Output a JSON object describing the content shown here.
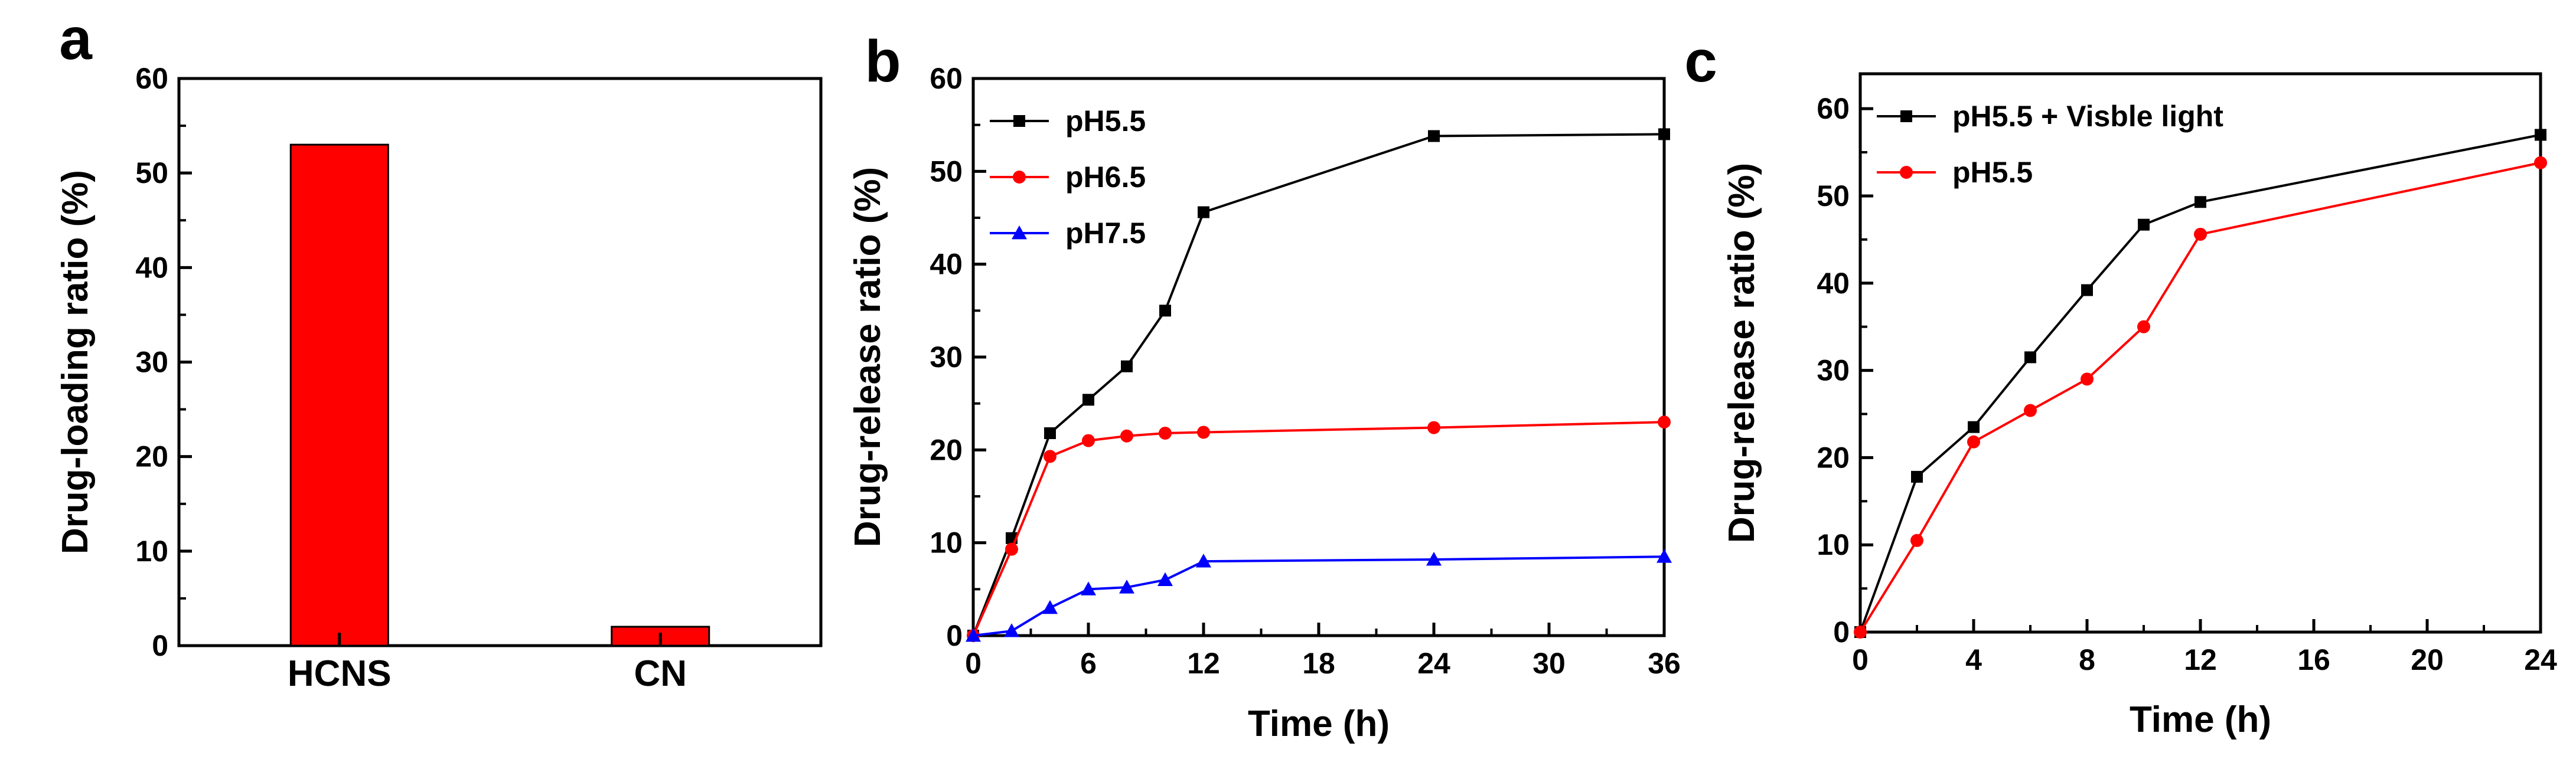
{
  "chart_data": [
    {
      "panel": "a",
      "type": "bar",
      "categories": [
        "HCNS",
        "CN"
      ],
      "values": [
        53,
        2
      ],
      "color": "#ff0000",
      "ylabel": "Drug-loading ratio (%)",
      "xlabel": "",
      "ylim": [
        0,
        60
      ],
      "yticks": [
        "0",
        "10",
        "20",
        "30",
        "40",
        "50",
        "60"
      ]
    },
    {
      "panel": "b",
      "type": "line",
      "xlabel": "Time (h)",
      "ylabel": "Drug-release ratio (%)",
      "xlim": [
        0,
        36
      ],
      "ylim": [
        0,
        60
      ],
      "xticks": [
        "0",
        "6",
        "12",
        "18",
        "24",
        "30",
        "36"
      ],
      "yticks": [
        "0",
        "10",
        "20",
        "30",
        "40",
        "50",
        "60"
      ],
      "legend_position": "top-left",
      "series": [
        {
          "name": "pH5.5",
          "color": "#000000",
          "marker": "square",
          "x": [
            0,
            2,
            4,
            6,
            8,
            10,
            12,
            24,
            36
          ],
          "y": [
            0,
            10.5,
            21.8,
            25.4,
            29,
            35,
            45.6,
            53.8,
            54
          ]
        },
        {
          "name": "pH6.5",
          "color": "#ff0000",
          "marker": "circle",
          "x": [
            0,
            2,
            4,
            6,
            8,
            10,
            12,
            24,
            36
          ],
          "y": [
            0,
            9.3,
            19.3,
            21,
            21.5,
            21.8,
            21.9,
            22.4,
            23
          ]
        },
        {
          "name": "pH7.5",
          "color": "#0000ff",
          "marker": "triangle",
          "x": [
            0,
            2,
            4,
            6,
            8,
            10,
            12,
            24,
            36
          ],
          "y": [
            0,
            0.5,
            3,
            5,
            5.2,
            6,
            8,
            8.2,
            8.5
          ]
        }
      ]
    },
    {
      "panel": "c",
      "type": "line",
      "xlabel": "Time (h)",
      "ylabel": "Drug-release ratio (%)",
      "xlim": [
        0,
        24
      ],
      "ylim": [
        0,
        64
      ],
      "xticks": [
        "0",
        "4",
        "8",
        "12",
        "16",
        "20",
        "24"
      ],
      "yticks": [
        "0",
        "10",
        "20",
        "30",
        "40",
        "50",
        "60"
      ],
      "legend_position": "top-left",
      "series": [
        {
          "name": "pH5.5 + Visble light",
          "color": "#000000",
          "marker": "square",
          "x": [
            0,
            2,
            4,
            6,
            8,
            10,
            12,
            24
          ],
          "y": [
            0,
            17.8,
            23.5,
            31.5,
            39.2,
            46.7,
            49.3,
            57
          ]
        },
        {
          "name": "pH5.5",
          "color": "#ff0000",
          "marker": "circle",
          "x": [
            0,
            2,
            4,
            6,
            8,
            10,
            12,
            24
          ],
          "y": [
            0,
            10.5,
            21.8,
            25.4,
            29,
            35,
            45.6,
            53.8
          ]
        }
      ]
    }
  ]
}
